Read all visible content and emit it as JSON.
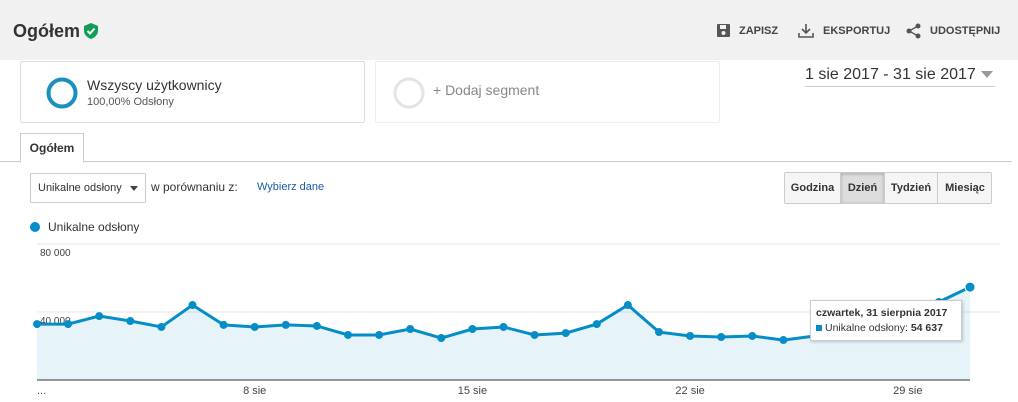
{
  "header": {
    "title": "Ogółem",
    "actions": [
      "ZAPISZ",
      "EKSPORTUJ",
      "UDOSTĘPNIJ"
    ]
  },
  "segments": {
    "active": {
      "name": "Wszyscy użytkownicy",
      "detail": "100,00% Odsłony"
    },
    "add": "+ Dodaj segment"
  },
  "date_range": "1 sie 2017 - 31 sie 2017",
  "tab": "Ogółem",
  "controls": {
    "metric": "Unikalne odsłony",
    "compare_label": "w porównaniu z:",
    "compare_link": "Wybierz dane",
    "granularity": [
      "Godzina",
      "Dzień",
      "Tydzień",
      "Miesiąc"
    ],
    "selected": "Dzień"
  },
  "chart_data": {
    "type": "area",
    "categories": [
      "...",
      null,
      null,
      null,
      null,
      null,
      null,
      "8 sie",
      null,
      null,
      null,
      null,
      null,
      null,
      "15 sie",
      null,
      null,
      null,
      null,
      null,
      null,
      "22 sie",
      null,
      null,
      null,
      null,
      null,
      null,
      "29 sie",
      null,
      null
    ],
    "series": [
      {
        "name": "Unikalne odsłony",
        "color": "#058dc7",
        "values": [
          32900,
          32900,
          37600,
          34700,
          31200,
          44100,
          32400,
          31200,
          32400,
          31800,
          26500,
          26500,
          30000,
          24700,
          30000,
          31200,
          26500,
          27600,
          32900,
          44100,
          28200,
          25900,
          25300,
          25900,
          23500,
          25900,
          27600,
          29400,
          32400,
          45900,
          54637
        ]
      }
    ],
    "ylim": [
      0,
      80000
    ],
    "yticks": [
      {
        "value": 40000,
        "label": "40 000"
      },
      {
        "value": 80000,
        "label": "80 000"
      }
    ],
    "grid": true,
    "tooltip": {
      "index": 30,
      "title": "czwartek, 31 sierpnia 2017",
      "label": "Unikalne odsłony:",
      "value_label": "54 637"
    }
  }
}
